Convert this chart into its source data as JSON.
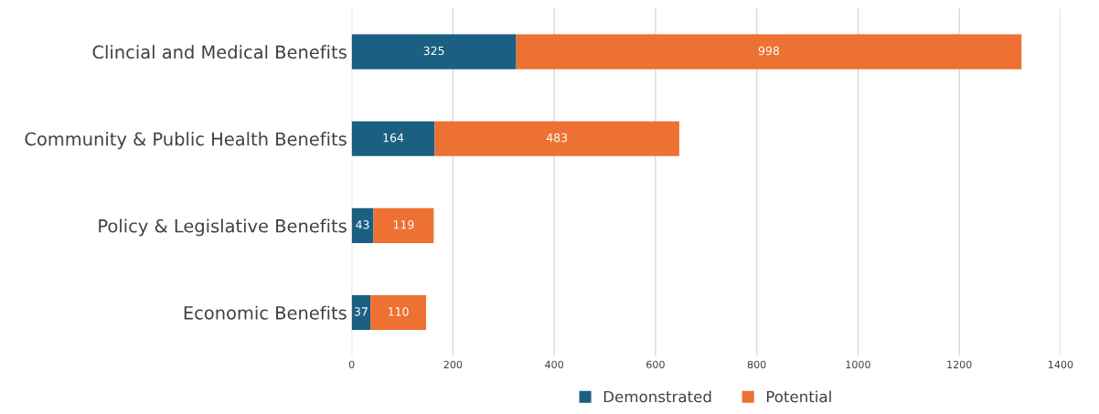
{
  "chart_data": {
    "type": "bar",
    "orientation": "horizontal",
    "stacked": true,
    "categories": [
      "Clincial and Medical Benefits",
      "Community & Public Health Benefits",
      "Policy & Legislative Benefits",
      "Economic Benefits"
    ],
    "series": [
      {
        "name": "Demonstrated",
        "color": "#1b5f82",
        "values": [
          325,
          164,
          43,
          37
        ]
      },
      {
        "name": "Potential",
        "color": "#ed7132",
        "values": [
          998,
          483,
          119,
          110
        ]
      }
    ],
    "xlim": [
      0,
      1400
    ],
    "xticks": [
      0,
      200,
      400,
      600,
      800,
      1000,
      1200,
      1400
    ],
    "grid": "x",
    "legend": "bottom",
    "data_labels": true
  }
}
